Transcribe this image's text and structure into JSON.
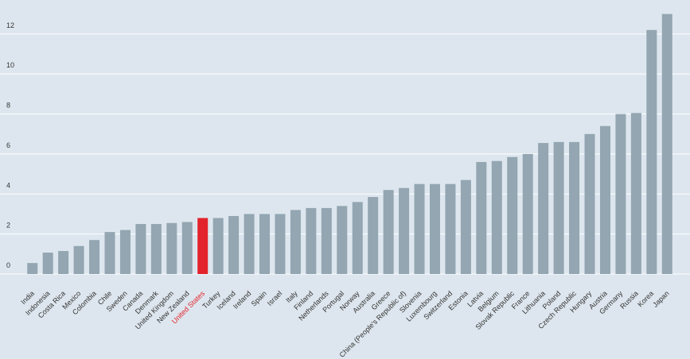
{
  "chart_data": {
    "type": "bar",
    "categories": [
      "India",
      "Indonesia",
      "Costa Rica",
      "Mexico",
      "Colombia",
      "Chile",
      "Sweden",
      "Canada",
      "Denmark",
      "United Kingdom",
      "New Zealand",
      "United States",
      "Turkey",
      "Iceland",
      "Ireland",
      "Spain",
      "Israel",
      "Italy",
      "Finland",
      "Netherlands",
      "Portugal",
      "Norway",
      "Australia",
      "Greece",
      "China (People's Republic of)",
      "Slovenia",
      "Luxembourg",
      "Switzerland",
      "Estonia",
      "Latvia",
      "Belgium",
      "Slovak Republic",
      "France",
      "Lithuania",
      "Poland",
      "Czech Republic",
      "Hungary",
      "Austria",
      "Germany",
      "Russia",
      "Korea",
      "Japan"
    ],
    "values": [
      0.55,
      1.07,
      1.15,
      1.4,
      1.7,
      2.1,
      2.2,
      2.5,
      2.5,
      2.55,
      2.6,
      2.8,
      2.8,
      2.9,
      3.0,
      3.0,
      3.0,
      3.2,
      3.3,
      3.3,
      3.4,
      3.6,
      3.85,
      4.2,
      4.3,
      4.5,
      4.5,
      4.5,
      4.7,
      5.6,
      5.65,
      5.85,
      6.0,
      6.55,
      6.6,
      6.6,
      7.0,
      7.4,
      8.0,
      8.05,
      12.2,
      13.0
    ],
    "colors": [
      "#93a6b2",
      "#93a6b2",
      "#93a6b2",
      "#93a6b2",
      "#93a6b2",
      "#93a6b2",
      "#93a6b2",
      "#93a6b2",
      "#93a6b2",
      "#93a6b2",
      "#93a6b2",
      "#e3232c",
      "#93a6b2",
      "#93a6b2",
      "#93a6b2",
      "#93a6b2",
      "#93a6b2",
      "#93a6b2",
      "#93a6b2",
      "#93a6b2",
      "#93a6b2",
      "#93a6b2",
      "#93a6b2",
      "#93a6b2",
      "#93a6b2",
      "#93a6b2",
      "#93a6b2",
      "#93a6b2",
      "#93a6b2",
      "#93a6b2",
      "#93a6b2",
      "#93a6b2",
      "#93a6b2",
      "#93a6b2",
      "#93a6b2",
      "#93a6b2",
      "#93a6b2",
      "#93a6b2",
      "#93a6b2",
      "#93a6b2",
      "#93a6b2",
      "#93a6b2"
    ],
    "ylim": [
      0,
      13.7
    ],
    "yticks": [
      0,
      2,
      4,
      6,
      8,
      10,
      12
    ],
    "grid": true
  }
}
